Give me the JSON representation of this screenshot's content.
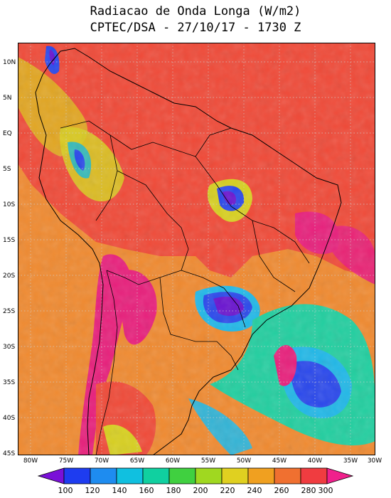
{
  "title": {
    "line1": "Radiacao de Onda Longa (W/m2)",
    "line2": "CPTEC/DSA - 27/10/17 - 1730 Z"
  },
  "axes": {
    "lat_labels": [
      "10N",
      "5N",
      "EQ",
      "5S",
      "10S",
      "15S",
      "20S",
      "25S",
      "30S",
      "35S",
      "40S",
      "45S"
    ],
    "lon_labels": [
      "80W",
      "75W",
      "70W",
      "65W",
      "60W",
      "55W",
      "50W",
      "45W",
      "40W",
      "35W",
      "30W"
    ]
  },
  "legend": {
    "values": [
      "100",
      "120",
      "140",
      "160",
      "180",
      "200",
      "220",
      "240",
      "260",
      "280",
      "300"
    ],
    "colors": [
      "#7a10d8",
      "#1e3cf0",
      "#1e8cf0",
      "#10c0e0",
      "#10d0a0",
      "#40d040",
      "#a0d820",
      "#e0d020",
      "#f0a020",
      "#f07030",
      "#f03c40",
      "#f0208c"
    ]
  },
  "map_colors": {
    "background": "#f08a30",
    "land_hot": "#f04a38",
    "magenta": "#e8207c",
    "deep": "#6a14d0",
    "blue": "#2a48ec",
    "cyan": "#20b8e8",
    "teal": "#22cfa0",
    "green": "#5ad040",
    "yellow": "#d8d020",
    "boundary": "#000000"
  }
}
